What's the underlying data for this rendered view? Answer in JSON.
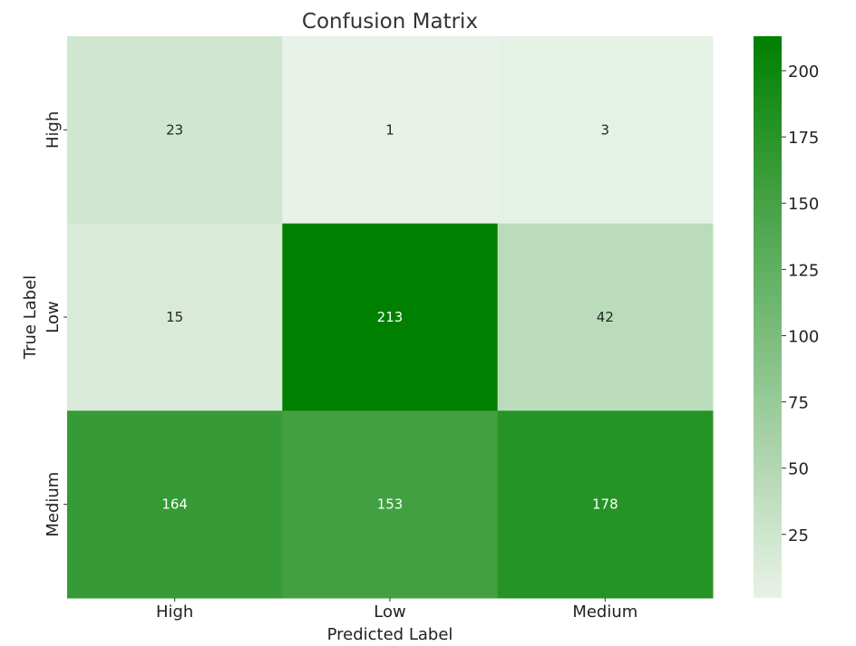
{
  "chart_data": {
    "type": "heatmap",
    "title": "Confusion Matrix",
    "xlabel": "Predicted Label",
    "ylabel": "True Label",
    "x_categories": [
      "High",
      "Low",
      "Medium"
    ],
    "y_categories": [
      "High",
      "Low",
      "Medium"
    ],
    "values": [
      [
        23,
        1,
        3
      ],
      [
        15,
        213,
        42
      ],
      [
        164,
        153,
        178
      ]
    ],
    "color_range": [
      1,
      213
    ],
    "colormap": {
      "low": "#e8f2e8",
      "high": "#008000"
    },
    "colorbar_ticks": [
      25,
      50,
      75,
      100,
      125,
      150,
      175,
      200
    ],
    "grid": false,
    "legend": "none"
  }
}
